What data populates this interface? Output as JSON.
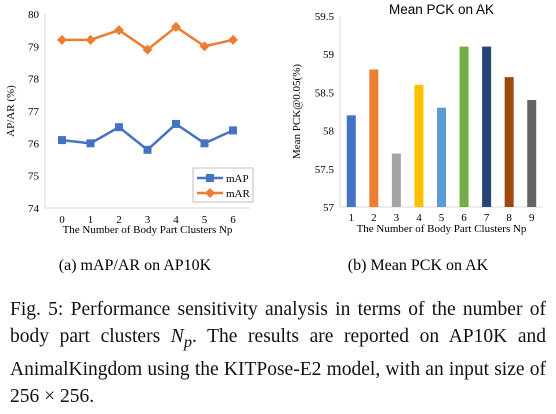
{
  "chart_data": [
    {
      "type": "line",
      "subcaption": "(a) mAP/AR on AP10K",
      "xlabel": "The Number of Body Part Clusters Np",
      "ylabel": "AP/AR (%)",
      "x": [
        0,
        1,
        2,
        3,
        4,
        5,
        6
      ],
      "ylim": [
        74,
        80
      ],
      "yticks": [
        74,
        75,
        76,
        77,
        78,
        79,
        80
      ],
      "grid": false,
      "legend": "bottom-right",
      "series": [
        {
          "name": "mAP",
          "color": "#4472c4",
          "marker": "square",
          "values": [
            76.1,
            76.0,
            76.5,
            75.8,
            76.6,
            76.0,
            76.4
          ]
        },
        {
          "name": "mAR",
          "color": "#ed7d31",
          "marker": "diamond",
          "values": [
            79.2,
            79.2,
            79.5,
            78.9,
            79.6,
            79.0,
            79.2
          ]
        }
      ]
    },
    {
      "type": "bar",
      "title": "Mean PCK on AK",
      "subcaption": "(b) Mean PCK on AK",
      "xlabel": "The Number of Body Part Clusters Np",
      "ylabel": "Mean PCK@0.05(%)",
      "categories": [
        "1",
        "2",
        "3",
        "4",
        "5",
        "6",
        "7",
        "8",
        "9"
      ],
      "values": [
        58.2,
        58.8,
        57.7,
        58.6,
        58.3,
        59.1,
        59.1,
        58.7,
        58.4
      ],
      "colors": [
        "#4472c4",
        "#ed7d31",
        "#a5a5a5",
        "#ffc000",
        "#5b9bd5",
        "#70ad47",
        "#264478",
        "#9e480e",
        "#636363"
      ],
      "ylim": [
        57,
        59.5
      ],
      "yticks": [
        "57",
        "57.5",
        "58",
        "58.5",
        "59",
        "59.5"
      ],
      "grid": false
    }
  ],
  "caption": {
    "lead": "Fig. 5: Performance sensitivity analysis in terms of the number of body part clusters ",
    "symbol": "N",
    "subscript": "p",
    "tail1": ". The results are reported on AP10K and AnimalKingdom using the KITPose-E2 model, with an input size of 256 ",
    "times": "×",
    "tail2": " 256."
  }
}
